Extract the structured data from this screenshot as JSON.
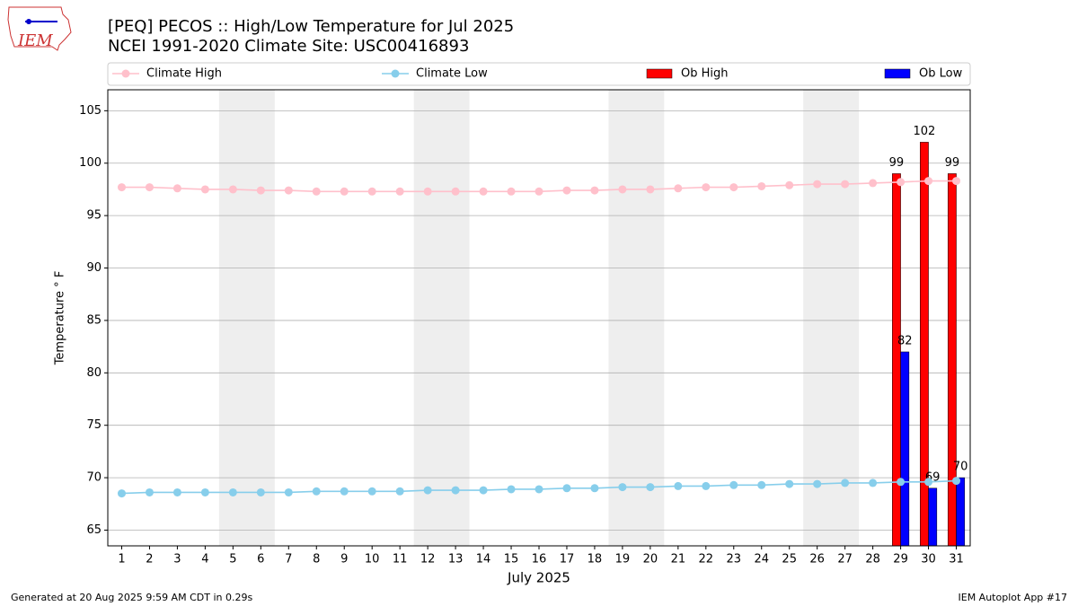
{
  "chart_data": {
    "type": "bar",
    "logo": "IEM",
    "title": "[PEQ] PECOS :: High/Low Temperature for Jul 2025",
    "subtitle": "NCEI 1991-2020 Climate Site: USC00416893",
    "xlabel": "July 2025",
    "ylabel": "Temperature ° F",
    "footer_left": "Generated at 20 Aug 2025 9:59 AM CDT in 0.29s",
    "footer_right": "IEM Autoplot App #17",
    "x": [
      1,
      2,
      3,
      4,
      5,
      6,
      7,
      8,
      9,
      10,
      11,
      12,
      13,
      14,
      15,
      16,
      17,
      18,
      19,
      20,
      21,
      22,
      23,
      24,
      25,
      26,
      27,
      28,
      29,
      30,
      31
    ],
    "xlim": [
      0.5,
      31.5
    ],
    "xticks": [
      1,
      2,
      3,
      4,
      5,
      6,
      7,
      8,
      9,
      10,
      11,
      12,
      13,
      14,
      15,
      16,
      17,
      18,
      19,
      20,
      21,
      22,
      23,
      24,
      25,
      26,
      27,
      28,
      29,
      30,
      31
    ],
    "ylim": [
      63.5,
      107
    ],
    "yticks": [
      65,
      70,
      75,
      80,
      85,
      90,
      95,
      100,
      105
    ],
    "grid": true,
    "shaded_spans": [
      [
        4.5,
        6.5
      ],
      [
        11.5,
        13.5
      ],
      [
        18.5,
        20.5
      ],
      [
        25.5,
        27.5
      ]
    ],
    "shade_color": "#eeeeee",
    "legend": "top",
    "series": [
      {
        "name": "Climate High",
        "type": "line",
        "color": "#ffc0cb",
        "values": [
          97.7,
          97.7,
          97.6,
          97.5,
          97.5,
          97.4,
          97.4,
          97.3,
          97.3,
          97.3,
          97.3,
          97.3,
          97.3,
          97.3,
          97.3,
          97.3,
          97.4,
          97.4,
          97.5,
          97.5,
          97.6,
          97.7,
          97.7,
          97.8,
          97.9,
          98.0,
          98.0,
          98.1,
          98.2,
          98.3,
          98.3
        ]
      },
      {
        "name": "Climate Low",
        "type": "line",
        "color": "#87ceeb",
        "values": [
          68.5,
          68.6,
          68.6,
          68.6,
          68.6,
          68.6,
          68.6,
          68.7,
          68.7,
          68.7,
          68.7,
          68.8,
          68.8,
          68.8,
          68.9,
          68.9,
          69.0,
          69.0,
          69.1,
          69.1,
          69.2,
          69.2,
          69.3,
          69.3,
          69.4,
          69.4,
          69.5,
          69.5,
          69.6,
          69.6,
          69.7
        ]
      },
      {
        "name": "Ob High",
        "type": "bar",
        "color": "#ff0000",
        "values": [
          null,
          null,
          null,
          null,
          null,
          null,
          null,
          null,
          null,
          null,
          null,
          null,
          null,
          null,
          null,
          null,
          null,
          null,
          null,
          null,
          null,
          null,
          null,
          null,
          null,
          null,
          null,
          null,
          99,
          102,
          99
        ]
      },
      {
        "name": "Ob Low",
        "type": "bar",
        "color": "#0000ff",
        "values": [
          null,
          null,
          null,
          null,
          null,
          null,
          null,
          null,
          null,
          null,
          null,
          null,
          null,
          null,
          null,
          null,
          null,
          null,
          null,
          null,
          null,
          null,
          null,
          null,
          null,
          null,
          null,
          null,
          82,
          69,
          70
        ]
      }
    ]
  }
}
